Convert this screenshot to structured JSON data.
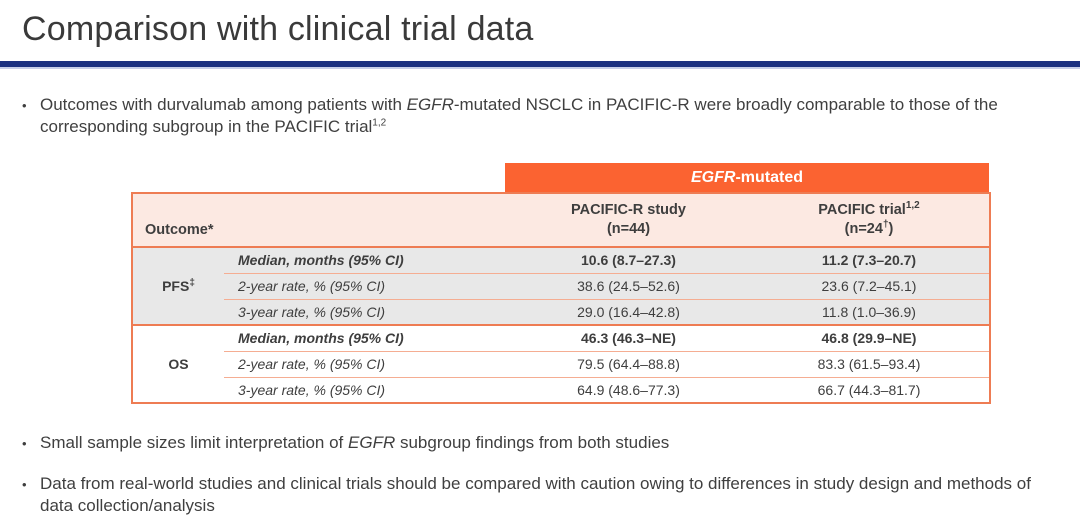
{
  "title": "Comparison with clinical trial data",
  "bullets": {
    "top": {
      "pre": "Outcomes with durvalumab among patients with ",
      "egfr": "EGFR",
      "mid": "-mutated NSCLC in PACIFIC-R were broadly comparable to those of the corresponding subgroup in the PACIFIC trial",
      "sup": "1,2"
    },
    "small_samples": {
      "pre": "Small sample sizes limit interpretation of ",
      "egfr": "EGFR",
      "post": " subgroup findings from both studies"
    },
    "caution": {
      "text": "Data from real-world studies and clinical trials should be compared with caution owing to differences in study design and methods of data collection/analysis"
    }
  },
  "table": {
    "banner": {
      "egfr": "EGFR",
      "rest": "-mutated"
    },
    "header": {
      "outcome": "Outcome*",
      "col1_line1": "PACIFIC-R study",
      "col1_line2": "(n=44)",
      "col2_line1": "PACIFIC trial",
      "col2_sup": "1,2",
      "col2_line2_pre": "(n=24",
      "col2_dagger": "†",
      "col2_line2_post": ")"
    },
    "groups": [
      {
        "name": "PFS",
        "name_sup": "‡",
        "rows": [
          {
            "label": "Median, months (95% CI)",
            "pacific_r": "10.6 (8.7–27.3)",
            "pacific_trial": "11.2 (7.3–20.7)"
          },
          {
            "label": "2-year rate, % (95% CI)",
            "pacific_r": "38.6 (24.5–52.6)",
            "pacific_trial": "23.6 (7.2–45.1)"
          },
          {
            "label": "3-year rate, % (95% CI)",
            "pacific_r": "29.0 (16.4–42.8)",
            "pacific_trial": "11.8 (1.0–36.9)"
          }
        ]
      },
      {
        "name": "OS",
        "name_sup": "",
        "rows": [
          {
            "label": "Median, months (95% CI)",
            "pacific_r": "46.3 (46.3–NE)",
            "pacific_trial": "46.8 (29.9–NE)"
          },
          {
            "label": "2-year rate, % (95% CI)",
            "pacific_r": "79.5 (64.4–88.8)",
            "pacific_trial": "83.3 (61.5–93.4)"
          },
          {
            "label": "3-year rate, % (95% CI)",
            "pacific_r": "64.9 (48.6–77.3)",
            "pacific_trial": "66.7 (44.3–81.7)"
          }
        ]
      }
    ]
  },
  "bullet_marker": "•",
  "colors": {
    "accent_orange": "#FB6331",
    "header_pink": "#FCE9E2",
    "row_gray": "#E8E8E8",
    "border_orange": "#EE7C53",
    "title_rule_navy": "#1A3080",
    "text": "#3F3F3F"
  }
}
